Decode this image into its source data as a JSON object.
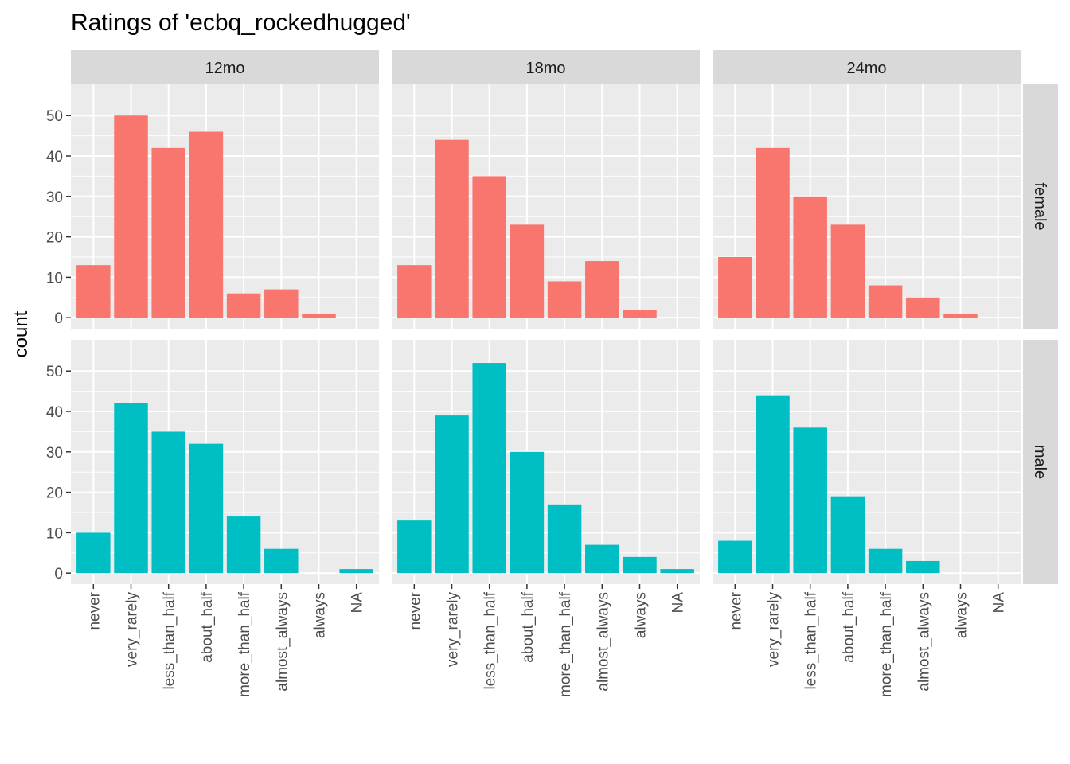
{
  "chart_data": {
    "type": "bar",
    "title": "Ratings of 'ecbq_rockedhugged'",
    "ylabel": "count",
    "xlabel": "",
    "ylim": [
      0,
      55
    ],
    "y_ticks": [
      0,
      10,
      20,
      30,
      40,
      50
    ],
    "grid": true,
    "categories": [
      "never",
      "very_rarely",
      "less_than_half",
      "about_half",
      "more_than_half",
      "almost_always",
      "always",
      "NA"
    ],
    "columns": [
      "12mo",
      "18mo",
      "24mo"
    ],
    "rows": [
      "female",
      "male"
    ],
    "colors": {
      "female": "#F8766D",
      "male": "#00BFC4"
    },
    "panels": [
      {
        "column": "12mo",
        "row": "female",
        "values": [
          13,
          50,
          42,
          46,
          6,
          7,
          1,
          0
        ]
      },
      {
        "column": "18mo",
        "row": "female",
        "values": [
          13,
          44,
          35,
          23,
          9,
          14,
          2,
          0
        ]
      },
      {
        "column": "24mo",
        "row": "female",
        "values": [
          15,
          42,
          30,
          23,
          8,
          5,
          1,
          0
        ]
      },
      {
        "column": "12mo",
        "row": "male",
        "values": [
          10,
          42,
          35,
          32,
          14,
          6,
          0,
          1
        ]
      },
      {
        "column": "18mo",
        "row": "male",
        "values": [
          13,
          39,
          52,
          30,
          17,
          7,
          4,
          1
        ]
      },
      {
        "column": "24mo",
        "row": "male",
        "values": [
          8,
          44,
          36,
          19,
          6,
          3,
          0,
          0
        ]
      }
    ]
  }
}
